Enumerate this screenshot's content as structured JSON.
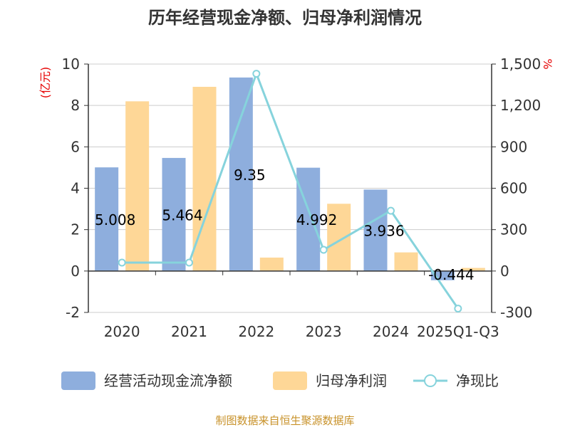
{
  "chart_data": {
    "type": "bar",
    "title": "历年经营现金净额、归母净利润情况",
    "categories": [
      "2020",
      "2021",
      "2022",
      "2023",
      "2024",
      "2025Q1-Q3"
    ],
    "series": [
      {
        "name": "经营活动现金流净额",
        "type": "bar",
        "axis": "left",
        "values": [
          5.008,
          5.464,
          9.35,
          4.992,
          3.936,
          -0.444
        ],
        "labels": [
          "5.008",
          "5.464",
          "9.35",
          "4.992",
          "3.936",
          "-0.444"
        ]
      },
      {
        "name": "归母净利润",
        "type": "bar",
        "axis": "left",
        "values": [
          8.2,
          8.9,
          0.65,
          3.25,
          0.9,
          0.15
        ]
      },
      {
        "name": "净现比",
        "type": "line",
        "axis": "right",
        "values": [
          61,
          61,
          1430,
          154,
          437,
          -272
        ]
      }
    ],
    "ylabel": "(亿元)",
    "y2label": "%",
    "ylim": [
      -2,
      10
    ],
    "yticks": [
      "10",
      "8",
      "6",
      "4",
      "2",
      "0",
      "-2"
    ],
    "y2lim": [
      -300,
      1500
    ],
    "y2ticks": [
      "1,500",
      "1,200",
      "900",
      "600",
      "300",
      "0",
      "-300"
    ],
    "legend_position": "bottom",
    "grid": true
  },
  "colors": {
    "bar1": "#8eaedd",
    "bar2": "#fed797",
    "line": "#86d3dc",
    "axis": "#333333",
    "grid": "#cccccc"
  },
  "source": "制图数据来自恒生聚源数据库"
}
